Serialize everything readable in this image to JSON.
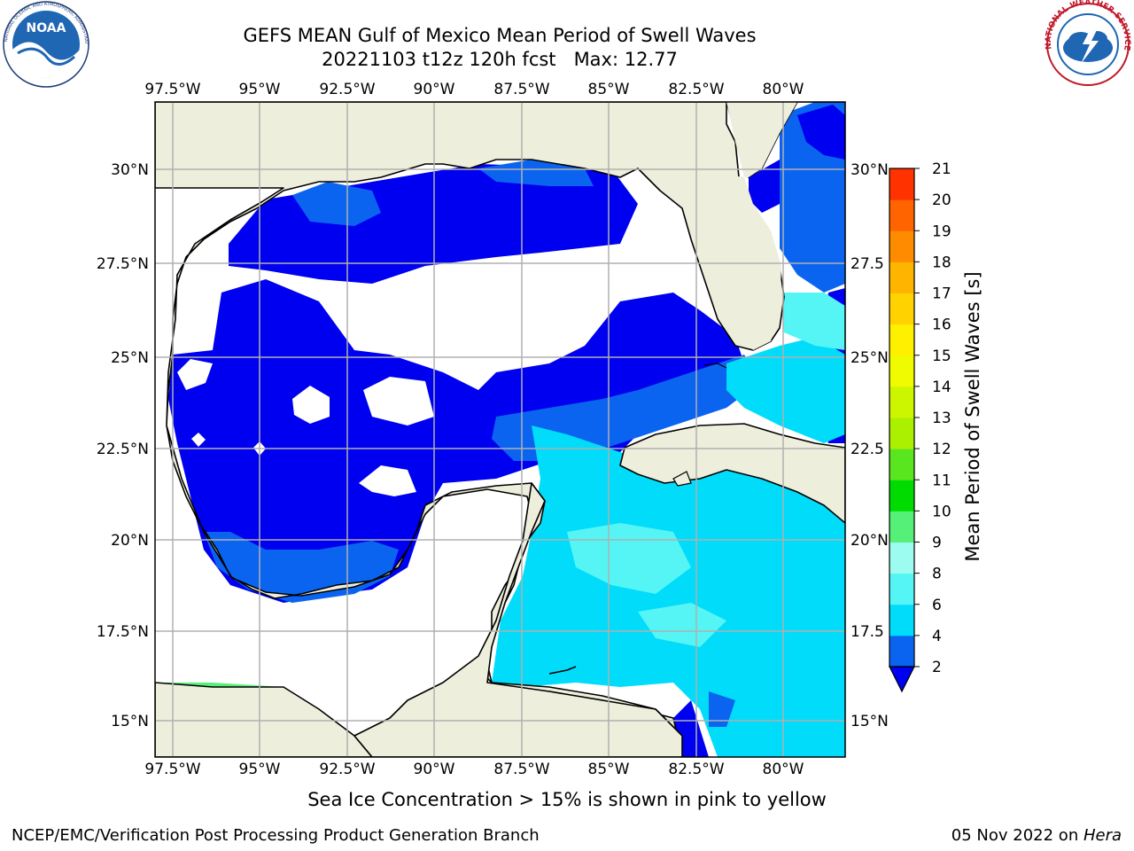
{
  "header": {
    "title_line1": "GEFS MEAN Gulf of Mexico Mean Period of Swell Waves",
    "title_line2": "20221103 t12z 120h fcst   Max: 12.77"
  },
  "logos": {
    "noaa_text": "NOAA",
    "noaa_ring": "NATIONAL OCEANIC AND ATMOSPHERIC ADMINISTRATION · U.S. DEPARTMENT OF COMMERCE",
    "nws_ring": "NATIONAL WEATHER SERVICE"
  },
  "map": {
    "lon_ticks": [
      "97.5°W",
      "95°W",
      "92.5°W",
      "90°W",
      "87.5°W",
      "85°W",
      "82.5°W",
      "80°W"
    ],
    "lat_ticks_left": [
      "30°N",
      "27.5°N",
      "25°N",
      "22.5°N",
      "20°N",
      "17.5°N",
      "15°N"
    ],
    "lat_ticks_right": [
      "30°N",
      "27.5",
      "25°N",
      "22.5",
      "20°N",
      "17.5",
      "15°N"
    ],
    "colors": {
      "land": "#eeeedc",
      "no_swell": "#ffffff",
      "grid": "#b0b0b0",
      "coast": "#000000"
    }
  },
  "colorbar": {
    "label": "Mean Period of Swell Waves [s]",
    "ticks": [
      "2",
      "4",
      "6",
      "8",
      "9",
      "10",
      "11",
      "12",
      "13",
      "14",
      "15",
      "16",
      "17",
      "18",
      "19",
      "20",
      "21"
    ],
    "colors": [
      "#0a64f0",
      "#00dcfa",
      "#55f5f5",
      "#9cfcf0",
      "#55f078",
      "#00dc00",
      "#5ae61e",
      "#aaf000",
      "#ccf500",
      "#f0fa00",
      "#fff000",
      "#ffd200",
      "#ffb400",
      "#ff8c00",
      "#ff6400",
      "#ff3200",
      "#ff0000"
    ],
    "extend_color": "#0000f0"
  },
  "footer": {
    "note": "Sea Ice Concentration > 15% is shown in pink to yellow",
    "left": "NCEP/EMC/Verification Post Processing Product Generation Branch",
    "right_date": "05 Nov 2022 on ",
    "right_host": "Hera"
  }
}
